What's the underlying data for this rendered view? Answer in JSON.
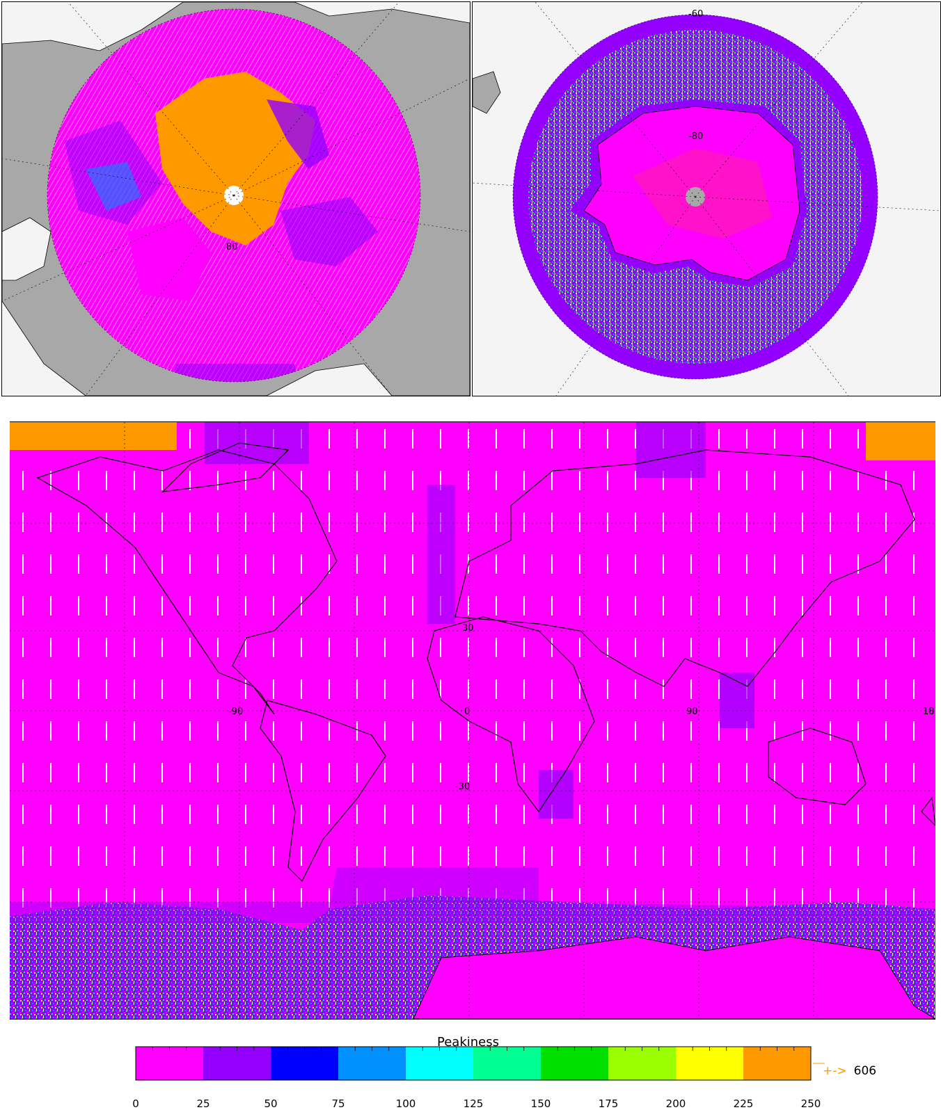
{
  "north_map": {
    "lat_label": "80"
  },
  "south_map": {
    "lat_labels": [
      "-60",
      "-80"
    ]
  },
  "world_map": {
    "lon_labels": [
      "-90",
      "0",
      "90",
      "18"
    ],
    "lat_labels": [
      "30",
      "-30"
    ]
  },
  "colorbar": {
    "title": "Peakiness",
    "ticks": [
      "0",
      "25",
      "50",
      "75",
      "100",
      "125",
      "150",
      "175",
      "200",
      "225",
      "250"
    ],
    "colors": [
      "#ff00ff",
      "#9400ff",
      "#0000ff",
      "#0090ff",
      "#00ffff",
      "#00ff90",
      "#00e000",
      "#99ff00",
      "#ffff00",
      "#ff9900"
    ],
    "overflow_arrow": "+->",
    "overflow_value": "606",
    "overflow_color": "#ff9900"
  },
  "colors": {
    "land_gray": "#a8a8a8",
    "background": "#f4f4f4",
    "dominant": "#ff00ff",
    "sea_ice": "#ff9900",
    "dropout": "#ffffff"
  }
}
